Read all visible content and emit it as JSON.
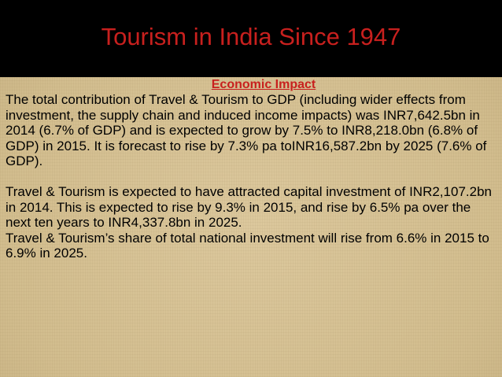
{
  "slide": {
    "title": "Tourism in India Since 1947",
    "subtitle": "Economic Impact",
    "paragraphs": [
      "The total contribution of Travel & Tourism to GDP (including wider effects from investment, the supply chain and induced income impacts) was  INR7,642.5bn in 2014 (6.7% of GDP) and is expected to grow by 7.5% to INR8,218.0bn (6.8% of GDP) in 2015. It is forecast to rise by 7.3% pa toINR16,587.2bn by 2025 (7.6% of GDP).",
      "Travel & Tourism is expected to have attracted capital investment of INR2,107.2bn in 2014.  This is expected to rise by 9.3% in 2015, and rise by 6.5% pa over the next ten years to INR4,337.8bn in 2025.",
      "Travel & Tourism’s share of total national investment will rise from 6.6% in 2015 to 6.9%  in 2025."
    ]
  },
  "colors": {
    "title_bar": "#000000",
    "title_text": "#c8201e",
    "background": "#d6c296",
    "body_text": "#000000"
  }
}
